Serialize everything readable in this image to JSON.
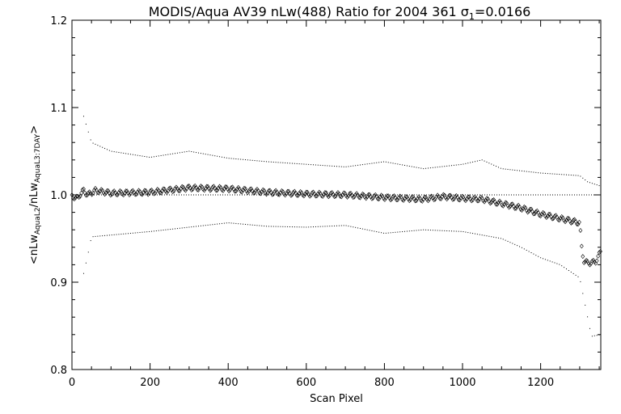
{
  "chart_data": {
    "type": "scatter",
    "title": {
      "prefix": "MODIS/Aqua AV39 nLw(488) Ratio for 2004 361 ",
      "sigma_symbol": "σ",
      "sigma_subscript": "1",
      "sigma_value": "=0.0166"
    },
    "xlabel": "Scan Pixel",
    "ylabel": {
      "open": "<",
      "num": "nLw",
      "num_sub": "AquaL2",
      "slash": "/",
      "den": "nLw",
      "den_sub": "AquaL3:7DAY",
      "close": ">"
    },
    "xlim": [
      0,
      1354
    ],
    "ylim": [
      0.8,
      1.2
    ],
    "x_ticks": [
      0,
      200,
      400,
      600,
      800,
      1000,
      1200
    ],
    "x_tick_labels": [
      "0",
      "200",
      "400",
      "600",
      "800",
      "1000",
      "1200"
    ],
    "y_ticks": [
      0.8,
      0.9,
      1.0,
      1.1,
      1.2
    ],
    "y_tick_labels": [
      "0.8",
      "0.9",
      "1.0",
      "1.1",
      "1.2"
    ],
    "reference_line_y": 1.0,
    "series": [
      {
        "style": "diamond",
        "points": [
          [
            0,
            1.0
          ],
          [
            10,
            0.995
          ],
          [
            20,
            1.0
          ],
          [
            30,
            1.005
          ],
          [
            40,
            1.0
          ],
          [
            60,
            1.005
          ],
          [
            100,
            1.002
          ],
          [
            200,
            1.003
          ],
          [
            300,
            1.008
          ],
          [
            400,
            1.007
          ],
          [
            500,
            1.003
          ],
          [
            600,
            1.001
          ],
          [
            700,
            1.0
          ],
          [
            800,
            0.997
          ],
          [
            900,
            0.995
          ],
          [
            950,
            0.998
          ],
          [
            1000,
            0.996
          ],
          [
            1050,
            0.995
          ],
          [
            1100,
            0.99
          ],
          [
            1150,
            0.985
          ],
          [
            1200,
            0.978
          ],
          [
            1250,
            0.973
          ],
          [
            1300,
            0.968
          ],
          [
            1305,
            0.94
          ],
          [
            1310,
            0.925
          ],
          [
            1320,
            0.922
          ],
          [
            1340,
            0.923
          ],
          [
            1354,
            0.935
          ]
        ]
      },
      {
        "style": "dot-upper",
        "points": [
          [
            30,
            1.09
          ],
          [
            40,
            1.075
          ],
          [
            50,
            1.06
          ],
          [
            100,
            1.05
          ],
          [
            200,
            1.043
          ],
          [
            300,
            1.05
          ],
          [
            400,
            1.042
          ],
          [
            500,
            1.038
          ],
          [
            600,
            1.035
          ],
          [
            700,
            1.032
          ],
          [
            800,
            1.038
          ],
          [
            900,
            1.03
          ],
          [
            1000,
            1.035
          ],
          [
            1050,
            1.04
          ],
          [
            1100,
            1.03
          ],
          [
            1200,
            1.025
          ],
          [
            1300,
            1.022
          ],
          [
            1320,
            1.015
          ],
          [
            1354,
            1.01
          ]
        ]
      },
      {
        "style": "dot-lower",
        "points": [
          [
            30,
            0.91
          ],
          [
            40,
            0.93
          ],
          [
            50,
            0.952
          ],
          [
            100,
            0.954
          ],
          [
            200,
            0.958
          ],
          [
            300,
            0.963
          ],
          [
            400,
            0.968
          ],
          [
            500,
            0.964
          ],
          [
            600,
            0.963
          ],
          [
            700,
            0.965
          ],
          [
            800,
            0.956
          ],
          [
            900,
            0.96
          ],
          [
            1000,
            0.958
          ],
          [
            1050,
            0.954
          ],
          [
            1100,
            0.95
          ],
          [
            1150,
            0.94
          ],
          [
            1200,
            0.928
          ],
          [
            1250,
            0.92
          ],
          [
            1300,
            0.905
          ],
          [
            1330,
            0.838
          ],
          [
            1354,
            0.84
          ]
        ]
      }
    ]
  }
}
